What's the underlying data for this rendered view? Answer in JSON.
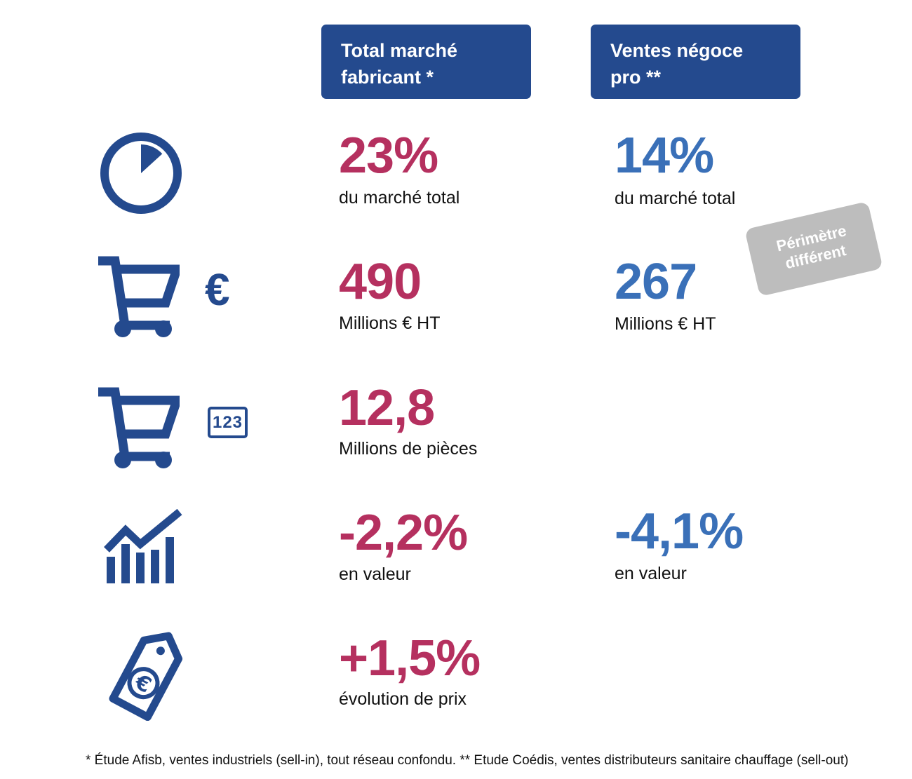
{
  "columns": [
    {
      "line1": "Total marché",
      "line2": "fabricant *"
    },
    {
      "line1": "Ventes négoce",
      "line2": "pro **"
    }
  ],
  "rows": [
    {
      "icon": "pie-chart-icon",
      "left": {
        "value": "23%",
        "label": "du marché total"
      },
      "right": {
        "value": "14%",
        "label": "du marché total"
      }
    },
    {
      "icon": "cart-euro-icon",
      "left": {
        "value": "490",
        "label": "Millions € HT"
      },
      "right": {
        "value": "267",
        "label": "Millions € HT"
      }
    },
    {
      "icon": "cart-count-icon",
      "left": {
        "value": "12,8",
        "label": "Millions de pièces"
      }
    },
    {
      "icon": "trend-bars-icon",
      "left": {
        "value": "-2,2%",
        "label": "en valeur"
      },
      "right": {
        "value": "-4,1%",
        "label": "en valeur"
      }
    },
    {
      "icon": "price-tag-euro-icon",
      "left": {
        "value": "+1,5%",
        "label": "évolution de prix"
      }
    }
  ],
  "icon_text": {
    "euro": "€",
    "count": "123"
  },
  "badge": {
    "line1": "Périmètre",
    "line2": "différent"
  },
  "footnote": "* Étude Afisb, ventes industriels (sell-in), tout réseau confondu. ** Etude Coédis, ventes distributeurs sanitaire chauffage (sell-out)",
  "colors": {
    "header_bg": "#244a8e",
    "left_value": "#b5305f",
    "right_value": "#3a70b8",
    "icon": "#244a8e",
    "badge": "#bdbdbd"
  }
}
